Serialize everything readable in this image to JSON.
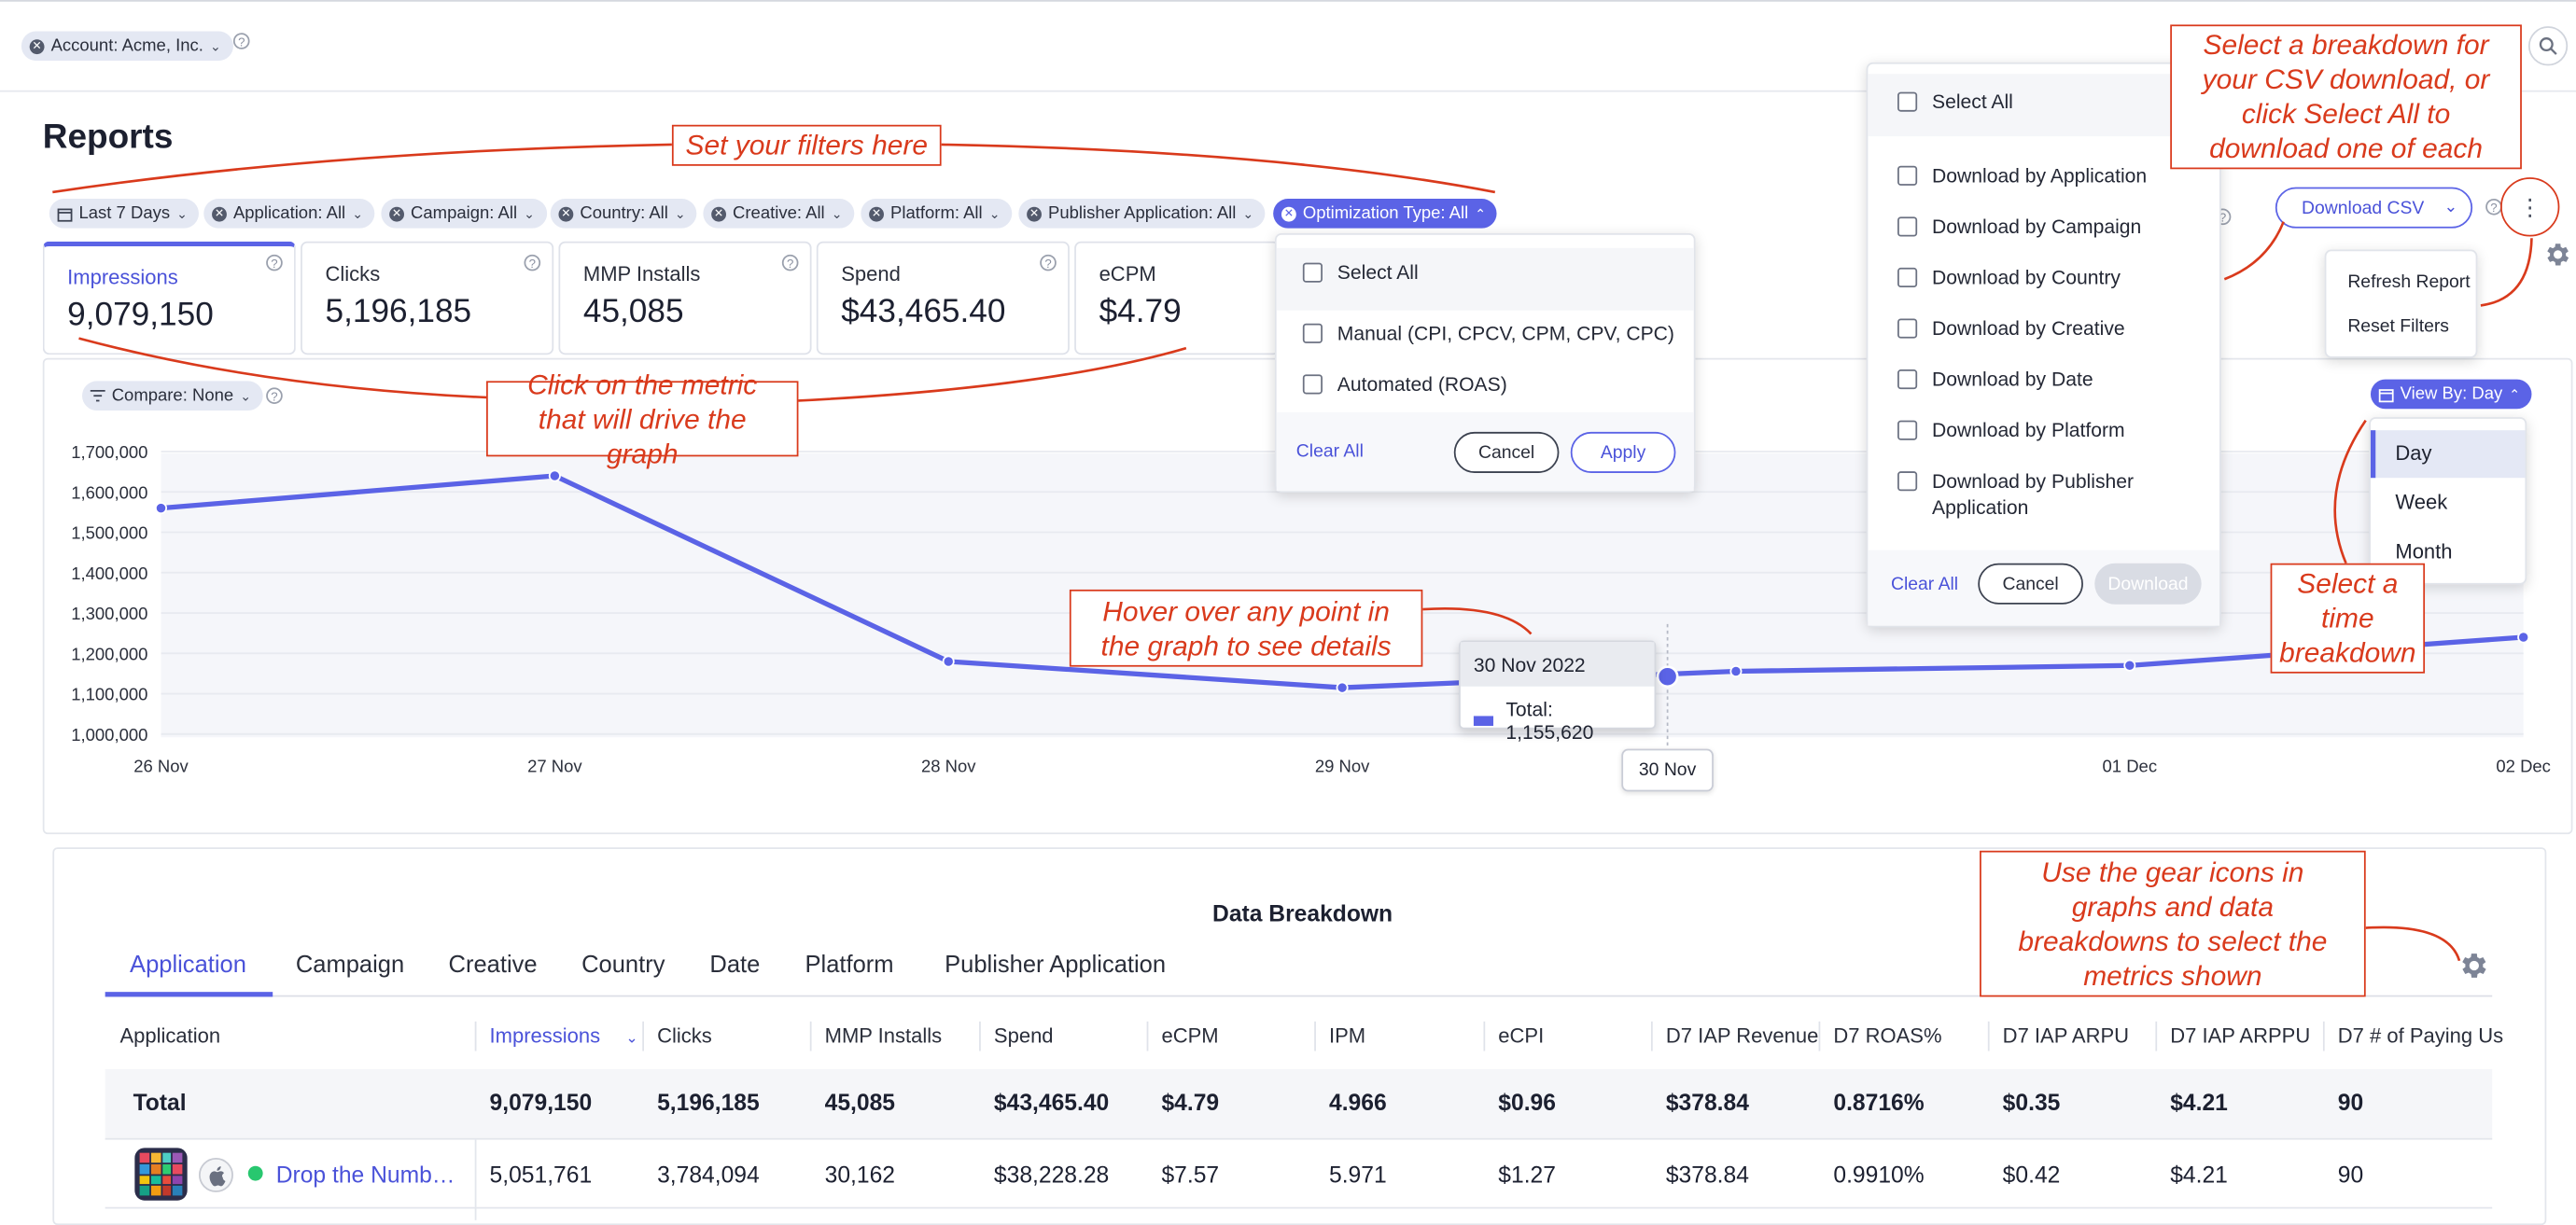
{
  "account_chip": "Account: Acme, Inc.",
  "page_title": "Reports",
  "filters": [
    {
      "label": "Last 7 Days"
    },
    {
      "label": "Application: All"
    },
    {
      "label": "Campaign: All"
    },
    {
      "label": "Country: All"
    },
    {
      "label": "Creative: All"
    },
    {
      "label": "Platform: All"
    },
    {
      "label": "Publisher Application: All"
    },
    {
      "label": "Optimization Type: All"
    }
  ],
  "metric_cards": [
    {
      "label": "Impressions",
      "value": "9,079,150"
    },
    {
      "label": "Clicks",
      "value": "5,196,185"
    },
    {
      "label": "MMP Installs",
      "value": "45,085"
    },
    {
      "label": "Spend",
      "value": "$43,465.40"
    },
    {
      "label": "eCPM",
      "value": "$4.79"
    }
  ],
  "optimization_dropdown": {
    "select_all": "Select All",
    "options": [
      "Manual (CPI, CPCV, CPM, CPV, CPC)",
      "Automated (ROAS)"
    ],
    "clear_all": "Clear All",
    "cancel": "Cancel",
    "apply": "Apply"
  },
  "csv_dropdown": {
    "select_all": "Select All",
    "options": [
      "Download by Application",
      "Download by Campaign",
      "Download by Country",
      "Download by Creative",
      "Download by Date",
      "Download by Platform",
      "Download by Publisher Application"
    ],
    "clear_all": "Clear All",
    "cancel": "Cancel",
    "download": "Download"
  },
  "download_csv_button": "Download CSV",
  "more_menu": [
    "Refresh Report",
    "Reset Filters"
  ],
  "compare_chip": "Compare: None",
  "view_by": {
    "label": "View By: Day",
    "options": [
      "Day",
      "Week",
      "Month"
    ],
    "selected": "Day"
  },
  "chart_data": {
    "type": "line",
    "x": [
      "26 Nov",
      "27 Nov",
      "28 Nov",
      "29 Nov",
      "30 Nov",
      "01 Dec",
      "02 Dec"
    ],
    "series": [
      {
        "values": [
          1560000,
          1640000,
          1180000,
          1115000,
          1155620,
          1170000,
          1240000
        ]
      }
    ],
    "y_ticks": [
      "1,700,000",
      "1,600,000",
      "1,500,000",
      "1,400,000",
      "1,300,000",
      "1,200,000",
      "1,100,000",
      "1,000,000"
    ],
    "ylim": [
      1000000,
      1700000
    ],
    "tooltip": {
      "date": "30 Nov 2022",
      "text": "Total: 1,155,620"
    },
    "hover_x_label": "30 Nov",
    "accent": "#5b63e6"
  },
  "annotations": {
    "filters": "Set your filters here",
    "metric": "Click on the metric that will drive the graph",
    "hover": "Hover over any point in the graph to see details",
    "csv": "Select a breakdown for your CSV download, or click Select All to download one of each",
    "time": "Select a time breakdown",
    "gear": "Use the gear icons in graphs and data breakdowns to select the metrics shown"
  },
  "breakdown": {
    "title": "Data Breakdown",
    "tabs": [
      "Application",
      "Campaign",
      "Creative",
      "Country",
      "Date",
      "Platform",
      "Publisher Application"
    ],
    "columns": [
      "Application",
      "Impressions",
      "Clicks",
      "MMP Installs",
      "Spend",
      "eCPM",
      "IPM",
      "eCPI",
      "D7 IAP Revenue",
      "D7 ROAS%",
      "D7 IAP ARPU",
      "D7 IAP ARPPU",
      "D7 # of Paying Us"
    ],
    "total_row": [
      "Total",
      "9,079,150",
      "5,196,185",
      "45,085",
      "$43,465.40",
      "$4.79",
      "4.966",
      "$0.96",
      "$378.84",
      "0.8716%",
      "$0.35",
      "$4.21",
      "90"
    ],
    "rows": [
      [
        "Drop the Numb…",
        "5,051,761",
        "3,784,094",
        "30,162",
        "$38,228.28",
        "$7.57",
        "5.971",
        "$1.27",
        "$378.84",
        "0.9910%",
        "$0.42",
        "$4.21",
        "90"
      ]
    ]
  }
}
